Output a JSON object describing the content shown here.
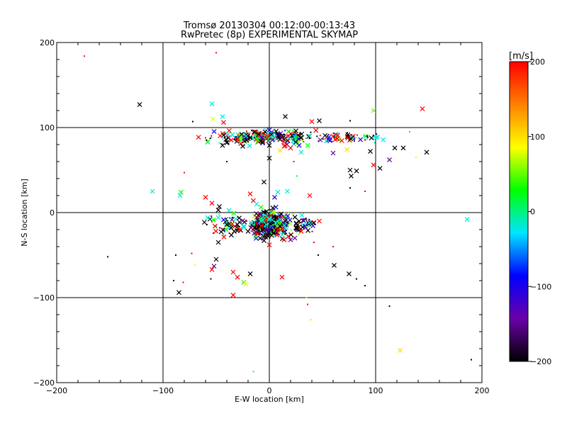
{
  "chart_data": {
    "type": "scatter",
    "title": "Tromsø 20130304 00:12:00-00:13:43",
    "subtitle": "RwPretec (8p) EXPERIMENTAL SKYMAP",
    "xlabel": "E-W location [km]",
    "ylabel": "N-S location [km]",
    "xlim": [
      -200,
      200
    ],
    "ylim": [
      -200,
      200
    ],
    "xticks": [
      -200,
      -100,
      0,
      100,
      200
    ],
    "yticks": [
      -200,
      -100,
      0,
      100,
      200
    ],
    "grid": true,
    "grid_lines": [
      -100,
      0,
      100
    ],
    "colorbar": {
      "label": "[m/s]",
      "min": -200,
      "max": 200,
      "ticks": [
        200,
        100,
        0,
        -100,
        -200
      ],
      "stops": [
        "#000000",
        "#6a00a8",
        "#0000ff",
        "#00e5ff",
        "#00ff00",
        "#ffff00",
        "#ff8000",
        "#ff0000"
      ]
    },
    "marker_types": [
      "x",
      "dot"
    ],
    "points": [
      {
        "x": -174,
        "y": 184,
        "v": 200,
        "m": "dot"
      },
      {
        "x": -50,
        "y": 188,
        "v": 200,
        "m": "dot"
      },
      {
        "x": -122,
        "y": 127,
        "v": -200,
        "m": "x"
      },
      {
        "x": -54,
        "y": 128,
        "v": -20,
        "m": "x"
      },
      {
        "x": -44,
        "y": 113,
        "v": -20,
        "m": "x"
      },
      {
        "x": -53,
        "y": 110,
        "v": 80,
        "m": "x"
      },
      {
        "x": -43,
        "y": 106,
        "v": 200,
        "m": "x"
      },
      {
        "x": -72,
        "y": 107,
        "v": -200,
        "m": "dot"
      },
      {
        "x": 15,
        "y": 113,
        "v": -200,
        "m": "x"
      },
      {
        "x": 40,
        "y": 107,
        "v": 200,
        "m": "x"
      },
      {
        "x": 47,
        "y": 108,
        "v": -200,
        "m": "x"
      },
      {
        "x": 98,
        "y": 120,
        "v": 50,
        "m": "x"
      },
      {
        "x": 144,
        "y": 122,
        "v": 200,
        "m": "x"
      },
      {
        "x": 76,
        "y": 108,
        "v": -200,
        "m": "dot"
      },
      {
        "x": -26,
        "y": 92,
        "v": -200,
        "m": "x"
      },
      {
        "x": -22,
        "y": 90,
        "v": -20,
        "m": "x"
      },
      {
        "x": -18,
        "y": 88,
        "v": -200,
        "m": "x"
      },
      {
        "x": -14,
        "y": 95,
        "v": -200,
        "m": "x"
      },
      {
        "x": -10,
        "y": 92,
        "v": -200,
        "m": "x"
      },
      {
        "x": -7,
        "y": 88,
        "v": -100,
        "m": "x"
      },
      {
        "x": -4,
        "y": 95,
        "v": -200,
        "m": "x"
      },
      {
        "x": -2,
        "y": 90,
        "v": 200,
        "m": "x"
      },
      {
        "x": 0,
        "y": 97,
        "v": -100,
        "m": "x"
      },
      {
        "x": 2,
        "y": 92,
        "v": -200,
        "m": "x"
      },
      {
        "x": 5,
        "y": 89,
        "v": -20,
        "m": "x"
      },
      {
        "x": -8,
        "y": 84,
        "v": -200,
        "m": "x"
      },
      {
        "x": -30,
        "y": 86,
        "v": 200,
        "m": "x"
      },
      {
        "x": -40,
        "y": 82,
        "v": -200,
        "m": "x"
      },
      {
        "x": -44,
        "y": 79,
        "v": -200,
        "m": "x"
      },
      {
        "x": 10,
        "y": 86,
        "v": -200,
        "m": "x"
      },
      {
        "x": 18,
        "y": 90,
        "v": 200,
        "m": "x"
      },
      {
        "x": 25,
        "y": 96,
        "v": -200,
        "m": "x"
      },
      {
        "x": 30,
        "y": 88,
        "v": -200,
        "m": "x"
      },
      {
        "x": 38,
        "y": 90,
        "v": -20,
        "m": "x"
      },
      {
        "x": 14,
        "y": 78,
        "v": 200,
        "m": "x"
      },
      {
        "x": 20,
        "y": 76,
        "v": 200,
        "m": "x"
      },
      {
        "x": 28,
        "y": 79,
        "v": -100,
        "m": "x"
      },
      {
        "x": 10,
        "y": 73,
        "v": 100,
        "m": "x"
      },
      {
        "x": 30,
        "y": 71,
        "v": -20,
        "m": "x"
      },
      {
        "x": -25,
        "y": 78,
        "v": -200,
        "m": "x"
      },
      {
        "x": 60,
        "y": 70,
        "v": -150,
        "m": "x"
      },
      {
        "x": 73,
        "y": 74,
        "v": 100,
        "m": "x"
      },
      {
        "x": 95,
        "y": 72,
        "v": -200,
        "m": "x"
      },
      {
        "x": 118,
        "y": 76,
        "v": -200,
        "m": "x"
      },
      {
        "x": 126,
        "y": 76,
        "v": -200,
        "m": "x"
      },
      {
        "x": 148,
        "y": 71,
        "v": -200,
        "m": "x"
      },
      {
        "x": 113,
        "y": 62,
        "v": -150,
        "m": "x"
      },
      {
        "x": 98,
        "y": 56,
        "v": 200,
        "m": "x"
      },
      {
        "x": 104,
        "y": 52,
        "v": -200,
        "m": "x"
      },
      {
        "x": 76,
        "y": 50,
        "v": -200,
        "m": "x"
      },
      {
        "x": 82,
        "y": 49,
        "v": -200,
        "m": "x"
      },
      {
        "x": 77,
        "y": 43,
        "v": -200,
        "m": "x"
      },
      {
        "x": 0,
        "y": 64,
        "v": -200,
        "m": "x"
      },
      {
        "x": 0,
        "y": 79,
        "v": -200,
        "m": "x"
      },
      {
        "x": -5,
        "y": 36,
        "v": -200,
        "m": "x"
      },
      {
        "x": 23,
        "y": 60,
        "v": 200,
        "m": "dot"
      },
      {
        "x": 138,
        "y": 65,
        "v": 80,
        "m": "dot"
      },
      {
        "x": 132,
        "y": 95,
        "v": 30,
        "m": "dot"
      },
      {
        "x": 92,
        "y": 90,
        "v": -200,
        "m": "dot"
      },
      {
        "x": 26,
        "y": 43,
        "v": 30,
        "m": "dot"
      },
      {
        "x": -80,
        "y": 47,
        "v": 200,
        "m": "dot"
      },
      {
        "x": -40,
        "y": 60,
        "v": -200,
        "m": "dot"
      },
      {
        "x": 90,
        "y": 25,
        "v": 200,
        "m": "dot"
      },
      {
        "x": 76,
        "y": 29,
        "v": -200,
        "m": "dot"
      },
      {
        "x": -110,
        "y": 25,
        "v": -20,
        "m": "x"
      },
      {
        "x": -83,
        "y": 24,
        "v": 30,
        "m": "x"
      },
      {
        "x": -84,
        "y": 20,
        "v": -20,
        "m": "x"
      },
      {
        "x": -60,
        "y": 18,
        "v": 200,
        "m": "x"
      },
      {
        "x": -54,
        "y": 11,
        "v": 200,
        "m": "x"
      },
      {
        "x": -47,
        "y": 7,
        "v": -200,
        "m": "x"
      },
      {
        "x": -48,
        "y": 3,
        "v": -200,
        "m": "x"
      },
      {
        "x": -18,
        "y": 22,
        "v": 200,
        "m": "x"
      },
      {
        "x": -15,
        "y": 14,
        "v": 200,
        "m": "x"
      },
      {
        "x": -12,
        "y": 10,
        "v": -20,
        "m": "x"
      },
      {
        "x": 8,
        "y": 24,
        "v": -20,
        "m": "x"
      },
      {
        "x": 17,
        "y": 25,
        "v": -20,
        "m": "x"
      },
      {
        "x": 5,
        "y": 18,
        "v": -100,
        "m": "x"
      },
      {
        "x": 38,
        "y": 20,
        "v": 200,
        "m": "x"
      },
      {
        "x": -58,
        "y": -6,
        "v": -20,
        "m": "x"
      },
      {
        "x": -48,
        "y": -6,
        "v": -20,
        "m": "x"
      },
      {
        "x": -40,
        "y": -14,
        "v": -200,
        "m": "x"
      },
      {
        "x": -36,
        "y": -18,
        "v": -200,
        "m": "x"
      },
      {
        "x": -33,
        "y": -22,
        "v": -200,
        "m": "x"
      },
      {
        "x": -30,
        "y": -14,
        "v": -200,
        "m": "x"
      },
      {
        "x": -28,
        "y": -20,
        "v": 200,
        "m": "x"
      },
      {
        "x": -24,
        "y": -16,
        "v": -20,
        "m": "x"
      },
      {
        "x": -20,
        "y": -22,
        "v": -200,
        "m": "x"
      },
      {
        "x": -17,
        "y": -12,
        "v": -20,
        "m": "x"
      },
      {
        "x": -14,
        "y": -18,
        "v": -200,
        "m": "x"
      },
      {
        "x": -11,
        "y": -25,
        "v": 200,
        "m": "x"
      },
      {
        "x": -8,
        "y": -10,
        "v": -20,
        "m": "x"
      },
      {
        "x": -6,
        "y": -20,
        "v": -200,
        "m": "x"
      },
      {
        "x": -3,
        "y": -14,
        "v": -20,
        "m": "x"
      },
      {
        "x": -1,
        "y": -28,
        "v": -200,
        "m": "x"
      },
      {
        "x": 0,
        "y": -8,
        "v": -20,
        "m": "x"
      },
      {
        "x": 2,
        "y": -18,
        "v": -100,
        "m": "x"
      },
      {
        "x": 4,
        "y": -24,
        "v": -200,
        "m": "x"
      },
      {
        "x": 6,
        "y": -12,
        "v": -20,
        "m": "x"
      },
      {
        "x": 8,
        "y": -20,
        "v": 200,
        "m": "x"
      },
      {
        "x": 10,
        "y": -16,
        "v": -200,
        "m": "x"
      },
      {
        "x": 12,
        "y": -26,
        "v": -20,
        "m": "x"
      },
      {
        "x": 15,
        "y": -10,
        "v": -200,
        "m": "x"
      },
      {
        "x": 18,
        "y": -28,
        "v": 200,
        "m": "x"
      },
      {
        "x": 20,
        "y": -32,
        "v": -150,
        "m": "x"
      },
      {
        "x": 25,
        "y": -18,
        "v": -200,
        "m": "x"
      },
      {
        "x": 28,
        "y": -10,
        "v": -200,
        "m": "x"
      },
      {
        "x": 30,
        "y": -22,
        "v": 200,
        "m": "x"
      },
      {
        "x": 24,
        "y": -30,
        "v": -150,
        "m": "x"
      },
      {
        "x": 14,
        "y": -32,
        "v": 200,
        "m": "x"
      },
      {
        "x": 47,
        "y": -10,
        "v": 200,
        "m": "x"
      },
      {
        "x": 186,
        "y": -8,
        "v": -20,
        "m": "x"
      },
      {
        "x": -48,
        "y": -35,
        "v": -200,
        "m": "x"
      },
      {
        "x": -5,
        "y": -33,
        "v": -200,
        "m": "x"
      },
      {
        "x": 0,
        "y": -38,
        "v": 200,
        "m": "x"
      },
      {
        "x": -50,
        "y": -55,
        "v": -200,
        "m": "x"
      },
      {
        "x": -52,
        "y": -63,
        "v": -150,
        "m": "x"
      },
      {
        "x": -54,
        "y": -67,
        "v": 200,
        "m": "x"
      },
      {
        "x": -34,
        "y": -70,
        "v": 200,
        "m": "x"
      },
      {
        "x": -30,
        "y": -76,
        "v": 200,
        "m": "x"
      },
      {
        "x": -24,
        "y": -82,
        "v": 30,
        "m": "x"
      },
      {
        "x": -22,
        "y": -84,
        "v": 80,
        "m": "x"
      },
      {
        "x": -18,
        "y": -72,
        "v": -200,
        "m": "x"
      },
      {
        "x": 12,
        "y": -76,
        "v": 200,
        "m": "x"
      },
      {
        "x": -34,
        "y": -97,
        "v": 200,
        "m": "x"
      },
      {
        "x": -85,
        "y": -94,
        "v": -200,
        "m": "x"
      },
      {
        "x": 61,
        "y": -62,
        "v": -200,
        "m": "x"
      },
      {
        "x": 75,
        "y": -72,
        "v": -200,
        "m": "x"
      },
      {
        "x": 123,
        "y": -162,
        "v": 100,
        "m": "x"
      },
      {
        "x": -152,
        "y": -52,
        "v": -200,
        "m": "dot"
      },
      {
        "x": -88,
        "y": -50,
        "v": -200,
        "m": "dot"
      },
      {
        "x": -90,
        "y": -80,
        "v": -200,
        "m": "dot"
      },
      {
        "x": -81,
        "y": -82,
        "v": 200,
        "m": "dot"
      },
      {
        "x": -73,
        "y": -48,
        "v": 200,
        "m": "dot"
      },
      {
        "x": -70,
        "y": -62,
        "v": 80,
        "m": "dot"
      },
      {
        "x": -55,
        "y": -78,
        "v": -200,
        "m": "dot"
      },
      {
        "x": 35,
        "y": -100,
        "v": 100,
        "m": "dot"
      },
      {
        "x": 36,
        "y": -108,
        "v": 200,
        "m": "dot"
      },
      {
        "x": 39,
        "y": -126,
        "v": 100,
        "m": "dot"
      },
      {
        "x": 82,
        "y": -78,
        "v": -200,
        "m": "dot"
      },
      {
        "x": 90,
        "y": -86,
        "v": -200,
        "m": "dot"
      },
      {
        "x": 113,
        "y": -110,
        "v": -200,
        "m": "dot"
      },
      {
        "x": 190,
        "y": -173,
        "v": -200,
        "m": "dot"
      },
      {
        "x": -15,
        "y": -187,
        "v": -20,
        "m": "dot"
      },
      {
        "x": 60,
        "y": -40,
        "v": 200,
        "m": "dot"
      },
      {
        "x": 46,
        "y": -50,
        "v": -200,
        "m": "dot"
      },
      {
        "x": 42,
        "y": -35,
        "v": 200,
        "m": "dot"
      }
    ],
    "dense_clusters": [
      {
        "cx": 0,
        "cy": 88,
        "sx": 45,
        "sy": 7,
        "n": 220
      },
      {
        "cx": 0,
        "cy": -14,
        "sx": 12,
        "sy": 12,
        "n": 520
      },
      {
        "cx": -40,
        "cy": -15,
        "sx": 18,
        "sy": 10,
        "n": 60
      },
      {
        "cx": 30,
        "cy": -15,
        "sx": 12,
        "sy": 10,
        "n": 50
      },
      {
        "cx": 75,
        "cy": 88,
        "sx": 28,
        "sy": 6,
        "n": 55
      }
    ]
  }
}
